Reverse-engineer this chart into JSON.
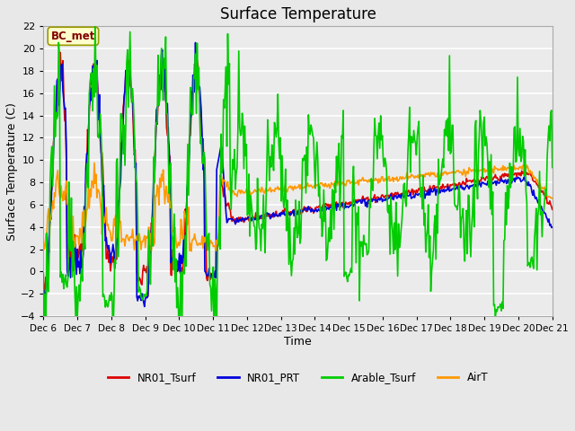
{
  "title": "Surface Temperature",
  "xlabel": "Time",
  "ylabel": "Surface Temperature (C)",
  "ylim": [
    -4,
    22
  ],
  "yticks": [
    -4,
    -2,
    0,
    2,
    4,
    6,
    8,
    10,
    12,
    14,
    16,
    18,
    20,
    22
  ],
  "fig_bg": "#e8e8e8",
  "plot_bg": "#ebebeb",
  "annotation_text": "BC_met",
  "annotation_bg": "#ffffcc",
  "annotation_fg": "#800000",
  "series": {
    "NR01_Tsurf": {
      "color": "#dd0000",
      "lw": 1.2
    },
    "NR01_PRT": {
      "color": "#0000dd",
      "lw": 1.2
    },
    "Arable_Tsurf": {
      "color": "#00cc00",
      "lw": 1.2
    },
    "AirT": {
      "color": "#ff9900",
      "lw": 1.2
    }
  },
  "x_start": 6.0,
  "x_end": 21.0,
  "xtick_positions": [
    6,
    7,
    8,
    9,
    10,
    11,
    12,
    13,
    14,
    15,
    16,
    17,
    18,
    19,
    20,
    21
  ],
  "xtick_labels": [
    "Dec 6",
    "Dec 7",
    "Dec 8",
    "Dec 9",
    "Dec 10",
    "Dec 11",
    "Dec 12",
    "Dec 13",
    "Dec 14",
    "Dec 15",
    "Dec 16",
    "Dec 17",
    "Dec 18",
    "Dec 19",
    "Dec 20",
    "Dec 21"
  ]
}
